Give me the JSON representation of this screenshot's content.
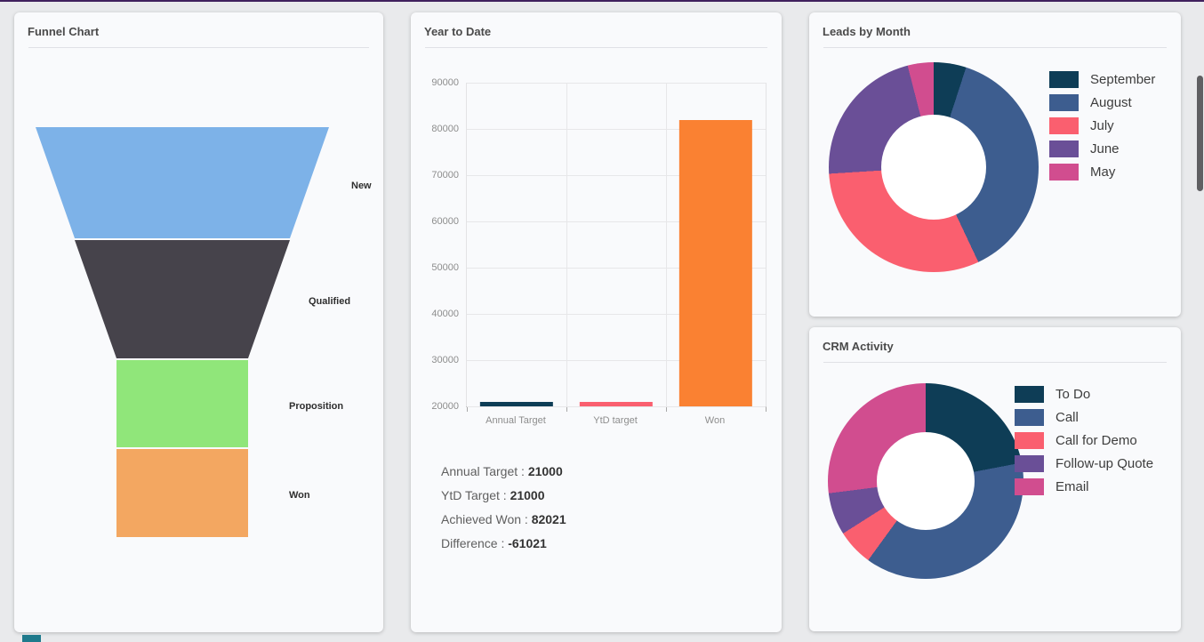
{
  "page": {
    "accent_top_color": "#40215e",
    "background": "#e9eaec"
  },
  "cards": {
    "funnel": {
      "title": "Funnel Chart"
    },
    "ytd": {
      "title": "Year to Date"
    },
    "leads": {
      "title": "Leads by Month"
    },
    "crm": {
      "title": "CRM Activity"
    }
  },
  "chart_data": [
    {
      "type": "funnel",
      "title": "Funnel Chart",
      "stages": [
        {
          "label": "New",
          "color": "#7db2e8"
        },
        {
          "label": "Qualified",
          "color": "#46434b"
        },
        {
          "label": "Proposition",
          "color": "#90e67a"
        },
        {
          "label": "Won",
          "color": "#f3a761"
        }
      ]
    },
    {
      "type": "bar",
      "title": "Year to Date",
      "categories": [
        "Annual Target",
        "YtD target",
        "Won"
      ],
      "values": [
        21000,
        21000,
        82021
      ],
      "colors": [
        "#0e3d56",
        "#fa5f6f",
        "#fa8132"
      ],
      "ylim": [
        20000,
        90000
      ],
      "yticks": [
        20000,
        30000,
        40000,
        50000,
        60000,
        70000,
        80000,
        90000
      ],
      "grid": true,
      "legend_position": "none",
      "summary": [
        {
          "label": "Annual Target :",
          "value": "21000"
        },
        {
          "label": "YtD Target :",
          "value": "21000"
        },
        {
          "label": "Achieved Won :",
          "value": "82021"
        },
        {
          "label": "Difference :",
          "value": "-61021"
        }
      ]
    },
    {
      "type": "pie",
      "title": "Leads by Month",
      "donut": true,
      "legend_position": "right",
      "slices": [
        {
          "label": "September",
          "value": 5,
          "color": "#0e3d56"
        },
        {
          "label": "August",
          "value": 38,
          "color": "#3d5d8f"
        },
        {
          "label": "July",
          "value": 31,
          "color": "#fa5f6f"
        },
        {
          "label": "June",
          "value": 22,
          "color": "#6a4f97"
        },
        {
          "label": "May",
          "value": 4,
          "color": "#d14d8f"
        }
      ]
    },
    {
      "type": "pie",
      "title": "CRM Activity",
      "donut": true,
      "legend_position": "right",
      "slices": [
        {
          "label": "To Do",
          "value": 22,
          "color": "#0e3d56"
        },
        {
          "label": "Call",
          "value": 38,
          "color": "#3d5d8f"
        },
        {
          "label": "Call for Demo",
          "value": 6,
          "color": "#fa5f6f"
        },
        {
          "label": "Follow-up Quote",
          "value": 7,
          "color": "#6a4f97"
        },
        {
          "label": "Email",
          "value": 27,
          "color": "#d14d8f"
        }
      ]
    }
  ]
}
